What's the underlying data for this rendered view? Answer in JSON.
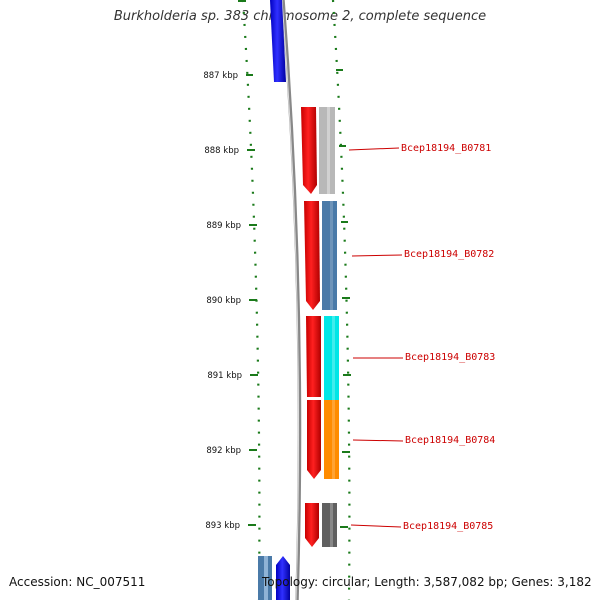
{
  "title": "Burkholderia sp. 383 chromosome 2, complete sequence",
  "footer": {
    "accession": "Accession: NC_007511",
    "topology": "Topology: circular; Length: 3,587,082 bp; Genes: 3,182"
  },
  "ruler": [
    {
      "label": "887 kbp"
    },
    {
      "label": "888 kbp"
    },
    {
      "label": "889 kbp"
    },
    {
      "label": "890 kbp"
    },
    {
      "label": "891 kbp"
    },
    {
      "label": "892 kbp"
    },
    {
      "label": "893 kbp"
    }
  ],
  "genes": [
    {
      "label": "Bcep18194_B0781",
      "color": "#b8b8b8"
    },
    {
      "label": "Bcep18194_B0782",
      "color": "#4a7aa8"
    },
    {
      "label": "Bcep18194_B0783",
      "color": "#00e6e6"
    },
    {
      "label": "Bcep18194_B0784",
      "color": "#ff8c00"
    },
    {
      "label": "Bcep18194_B0785",
      "color": "#606060"
    }
  ],
  "colors": {
    "forward_strand": "#ff0000",
    "reverse_strand": "#0000ff",
    "ruler": "#1a7a1a",
    "label": "#cc0000",
    "backbone": "#888888"
  }
}
